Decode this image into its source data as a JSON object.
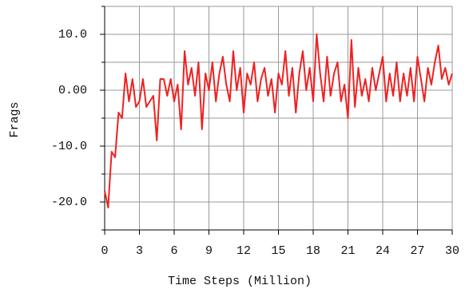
{
  "chart_data": {
    "type": "line",
    "xlabel": "Time Steps (Million)",
    "ylabel": "Frags",
    "x": [
      0,
      0.3,
      0.6,
      0.9,
      1.2,
      1.5,
      1.8,
      2.1,
      2.4,
      2.7,
      3.0,
      3.3,
      3.6,
      3.9,
      4.2,
      4.5,
      4.8,
      5.1,
      5.4,
      5.7,
      6.0,
      6.3,
      6.6,
      6.9,
      7.2,
      7.5,
      7.8,
      8.1,
      8.4,
      8.7,
      9.0,
      9.3,
      9.6,
      9.9,
      10.2,
      10.5,
      10.8,
      11.1,
      11.4,
      11.7,
      12.0,
      12.3,
      12.6,
      12.9,
      13.2,
      13.5,
      13.8,
      14.1,
      14.4,
      14.7,
      15.0,
      15.3,
      15.6,
      15.9,
      16.2,
      16.5,
      16.8,
      17.1,
      17.4,
      17.7,
      18.0,
      18.3,
      18.6,
      18.9,
      19.2,
      19.5,
      19.8,
      20.1,
      20.4,
      20.7,
      21.0,
      21.3,
      21.6,
      21.9,
      22.2,
      22.5,
      22.8,
      23.1,
      23.4,
      23.7,
      24.0,
      24.3,
      24.6,
      24.9,
      25.2,
      25.5,
      25.8,
      26.1,
      26.4,
      26.7,
      27.0,
      27.3,
      27.6,
      27.9,
      28.2,
      28.5,
      28.8,
      29.1,
      29.4,
      29.7,
      30.0
    ],
    "series": [
      {
        "color": "#ee2222",
        "values": [
          -18,
          -21,
          -11,
          -12,
          -4,
          -5,
          3,
          -2,
          2,
          -3,
          -2,
          2,
          -3,
          -2,
          -1,
          -9,
          2,
          2,
          -1,
          2,
          -2,
          1,
          -7,
          7,
          1,
          4,
          -1,
          5,
          -7,
          3,
          0,
          5,
          -2,
          3,
          6,
          1,
          -2,
          7,
          0,
          4,
          -4,
          3,
          1,
          5,
          -2,
          2,
          4,
          -1,
          2,
          -4,
          3,
          1,
          7,
          -1,
          4,
          -4,
          3,
          7,
          0,
          4,
          -2,
          10,
          3,
          -2,
          6,
          -1,
          3,
          5,
          -2,
          1,
          -5,
          9,
          -3,
          4,
          -1,
          2,
          -2,
          4,
          0,
          3,
          6,
          -2,
          3,
          -1,
          5,
          -2,
          3,
          -1,
          4,
          -2,
          6,
          2,
          -2,
          4,
          1,
          5,
          8,
          2,
          4,
          1,
          3
        ]
      }
    ],
    "xlim": [
      0,
      30
    ],
    "xticks": [
      0,
      3,
      6,
      9,
      12,
      15,
      18,
      21,
      24,
      27,
      30
    ],
    "ylim": [
      -25,
      15
    ],
    "yticks": [
      {
        "value": -20,
        "label": "-20.0"
      },
      {
        "value": -10,
        "label": "-10.0"
      },
      {
        "value": 0,
        "label": "0.00"
      },
      {
        "value": 10,
        "label": "10.0"
      }
    ],
    "yminorticks": [
      -25,
      -15,
      -5,
      5,
      15
    ],
    "grid": true
  }
}
